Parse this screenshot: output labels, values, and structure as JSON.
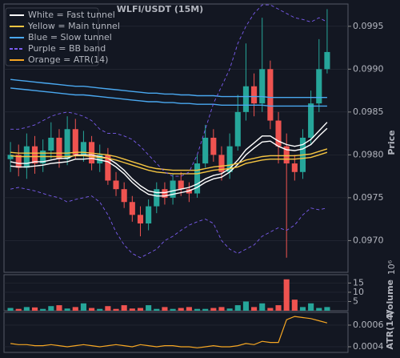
{
  "chart_data": [
    {
      "type": "candlestick",
      "title": "WLFI/USDT (15M)",
      "ylabel": "Price",
      "up_color": "#26a69a",
      "down_color": "#ef5350",
      "open": [
        0.09795,
        0.098,
        0.09785,
        0.0981,
        0.0979,
        0.09805,
        0.0982,
        0.09795,
        0.0983,
        0.098,
        0.09815,
        0.0979,
        0.098,
        0.0977,
        0.0976,
        0.09745,
        0.0973,
        0.0972,
        0.0974,
        0.0976,
        0.0975,
        0.0977,
        0.0976,
        0.09755,
        0.0979,
        0.0982,
        0.098,
        0.0978,
        0.0981,
        0.0985,
        0.0988,
        0.0986,
        0.099,
        0.0984,
        0.0981,
        0.0979,
        0.0978,
        0.0982,
        0.0986,
        0.099
      ],
      "high": [
        0.09815,
        0.09812,
        0.09825,
        0.09822,
        0.09818,
        0.09838,
        0.0983,
        0.09845,
        0.09842,
        0.09828,
        0.09822,
        0.09812,
        0.09808,
        0.0978,
        0.09768,
        0.09752,
        0.0974,
        0.09748,
        0.09768,
        0.09768,
        0.09778,
        0.0978,
        0.09768,
        0.098,
        0.09835,
        0.0983,
        0.0981,
        0.09825,
        0.0987,
        0.0993,
        0.09895,
        0.0996,
        0.0991,
        0.0985,
        0.09825,
        0.098,
        0.0983,
        0.09875,
        0.09935,
        0.0997
      ],
      "low": [
        0.0978,
        0.09775,
        0.09772,
        0.09778,
        0.0978,
        0.09795,
        0.09785,
        0.09788,
        0.09795,
        0.09792,
        0.09782,
        0.0978,
        0.09765,
        0.09752,
        0.09738,
        0.09722,
        0.09705,
        0.09712,
        0.09732,
        0.09742,
        0.09742,
        0.09752,
        0.09745,
        0.0975,
        0.09785,
        0.09792,
        0.0977,
        0.09772,
        0.09805,
        0.0984,
        0.09845,
        0.0985,
        0.0983,
        0.0979,
        0.0968,
        0.0977,
        0.09772,
        0.09812,
        0.0985,
        0.09895
      ],
      "close": [
        0.098,
        0.09785,
        0.0981,
        0.0979,
        0.09805,
        0.0982,
        0.09795,
        0.0983,
        0.098,
        0.09815,
        0.0979,
        0.098,
        0.0977,
        0.0976,
        0.09745,
        0.0973,
        0.0972,
        0.0974,
        0.0976,
        0.0975,
        0.0977,
        0.0976,
        0.09755,
        0.0979,
        0.0982,
        0.098,
        0.0978,
        0.0981,
        0.0985,
        0.0988,
        0.0986,
        0.099,
        0.0984,
        0.0981,
        0.0979,
        0.0978,
        0.0982,
        0.0986,
        0.099,
        0.0992
      ],
      "series": [
        {
          "name": "White = Fast tunnel",
          "color": "#ffffff",
          "values": [
            0.09792,
            0.0979,
            0.0979,
            0.09792,
            0.09792,
            0.09794,
            0.09796,
            0.09796,
            0.098,
            0.098,
            0.098,
            0.09798,
            0.09796,
            0.0979,
            0.09782,
            0.09772,
            0.09764,
            0.09758,
            0.09756,
            0.09756,
            0.09758,
            0.0976,
            0.09762,
            0.09766,
            0.09772,
            0.09776,
            0.09778,
            0.09784,
            0.09794,
            0.09806,
            0.09814,
            0.09822,
            0.09822,
            0.09816,
            0.09812,
            0.0981,
            0.09812,
            0.09818,
            0.09828,
            0.09838
          ],
          "lower": [
            0.09787,
            0.09786,
            0.09786,
            0.09787,
            0.09788,
            0.0979,
            0.09791,
            0.09792,
            0.09795,
            0.09795,
            0.09796,
            0.09794,
            0.09792,
            0.09786,
            0.09778,
            0.09768,
            0.0976,
            0.09754,
            0.09752,
            0.09752,
            0.09754,
            0.09756,
            0.09758,
            0.09762,
            0.09768,
            0.09772,
            0.09774,
            0.0978,
            0.09789,
            0.098,
            0.09808,
            0.09815,
            0.09816,
            0.0981,
            0.09806,
            0.09805,
            0.09807,
            0.09812,
            0.09822,
            0.09831
          ]
        },
        {
          "name": "Yellow = Main tunnel",
          "color": "#f5c542",
          "values": [
            0.09803,
            0.09802,
            0.09802,
            0.09802,
            0.09802,
            0.09802,
            0.09802,
            0.09802,
            0.09803,
            0.09803,
            0.09802,
            0.09801,
            0.098,
            0.09798,
            0.09795,
            0.09792,
            0.09789,
            0.09786,
            0.09784,
            0.09783,
            0.09782,
            0.09782,
            0.09782,
            0.09782,
            0.09784,
            0.09786,
            0.09787,
            0.09788,
            0.0979,
            0.09794,
            0.09796,
            0.09798,
            0.09799,
            0.09799,
            0.09799,
            0.09799,
            0.098,
            0.09801,
            0.09804,
            0.09807
          ],
          "lower": [
            0.09799,
            0.09798,
            0.09798,
            0.09798,
            0.09798,
            0.09798,
            0.09798,
            0.09798,
            0.09799,
            0.09799,
            0.09798,
            0.09797,
            0.09796,
            0.09794,
            0.09791,
            0.09788,
            0.09785,
            0.09782,
            0.0978,
            0.09779,
            0.09778,
            0.09778,
            0.09778,
            0.09778,
            0.0978,
            0.09782,
            0.09783,
            0.09784,
            0.09786,
            0.0979,
            0.09792,
            0.09794,
            0.09795,
            0.09795,
            0.09795,
            0.09795,
            0.09796,
            0.09797,
            0.098,
            0.09803
          ]
        },
        {
          "name": "Blue = Slow tunnel",
          "color": "#4aa8f0",
          "values": [
            0.09888,
            0.09887,
            0.09886,
            0.09885,
            0.09884,
            0.09883,
            0.09882,
            0.09881,
            0.0988,
            0.0988,
            0.09879,
            0.09878,
            0.09877,
            0.09876,
            0.09875,
            0.09874,
            0.09873,
            0.09872,
            0.09872,
            0.09871,
            0.09871,
            0.0987,
            0.0987,
            0.09869,
            0.09869,
            0.09869,
            0.09868,
            0.09868,
            0.09868,
            0.09868,
            0.09868,
            0.09868,
            0.09867,
            0.09867,
            0.09867,
            0.09867,
            0.09867,
            0.09867,
            0.09867,
            0.09867
          ],
          "lower": [
            0.09878,
            0.09877,
            0.09876,
            0.09875,
            0.09874,
            0.09873,
            0.09872,
            0.09871,
            0.0987,
            0.0987,
            0.09869,
            0.09868,
            0.09867,
            0.09866,
            0.09865,
            0.09864,
            0.09863,
            0.09862,
            0.09862,
            0.09861,
            0.09861,
            0.0986,
            0.0986,
            0.09859,
            0.09859,
            0.09859,
            0.09858,
            0.09858,
            0.09858,
            0.09858,
            0.09858,
            0.09858,
            0.09857,
            0.09857,
            0.09857,
            0.09857,
            0.09857,
            0.09857,
            0.09857,
            0.09857
          ]
        },
        {
          "name": "Purple = BB band",
          "color": "#7b5cf0",
          "dashed": true,
          "values": [
            0.0983,
            0.0983,
            0.09832,
            0.09835,
            0.0984,
            0.09845,
            0.09848,
            0.0985,
            0.09848,
            0.09845,
            0.0984,
            0.0983,
            0.09825,
            0.09825,
            0.09822,
            0.09818,
            0.0981,
            0.098,
            0.0979,
            0.0978,
            0.09775,
            0.09775,
            0.0978,
            0.098,
            0.0983,
            0.0986,
            0.0988,
            0.099,
            0.0993,
            0.0995,
            0.09965,
            0.09975,
            0.09975,
            0.0997,
            0.09965,
            0.0996,
            0.09958,
            0.09955,
            0.0996,
            0.09955
          ],
          "lower": [
            0.0976,
            0.09762,
            0.0976,
            0.09758,
            0.09755,
            0.09752,
            0.0975,
            0.09745,
            0.09748,
            0.0975,
            0.09752,
            0.09745,
            0.0973,
            0.0971,
            0.09695,
            0.09685,
            0.0968,
            0.09685,
            0.0969,
            0.097,
            0.09705,
            0.09712,
            0.09718,
            0.09722,
            0.09725,
            0.0972,
            0.097,
            0.0969,
            0.09685,
            0.0969,
            0.09695,
            0.09705,
            0.0971,
            0.09715,
            0.09712,
            0.09718,
            0.0973,
            0.09738,
            0.09736,
            0.09738
          ]
        }
      ],
      "ylim": [
        0.09663,
        0.09976
      ],
      "yticks": [
        {
          "value": 0.097,
          "label": "0.0970"
        },
        {
          "value": 0.0975,
          "label": "0.0975"
        },
        {
          "value": 0.098,
          "label": "0.0980"
        },
        {
          "value": 0.0985,
          "label": "0.0985"
        },
        {
          "value": 0.099,
          "label": "0.0990"
        },
        {
          "value": 0.0995,
          "label": "0.0995"
        }
      ],
      "grid": true
    },
    {
      "type": "bar",
      "ylabel": "Volume",
      "offset_label": "10⁶",
      "values": [
        1.5,
        1,
        2,
        1.8,
        1,
        2.5,
        3,
        1.2,
        2,
        4,
        1.5,
        1,
        2.5,
        1,
        3,
        1.2,
        1.5,
        3,
        1,
        2,
        1,
        1.5,
        2,
        1,
        1,
        1.5,
        2,
        1.2,
        3,
        5,
        2,
        4,
        1.5,
        3,
        17,
        6,
        2,
        4,
        1.5,
        2
      ],
      "ylim": [
        0,
        19.5
      ],
      "yticks": [
        5,
        10,
        15
      ],
      "grid": true
    },
    {
      "type": "line",
      "ylabel": "ATR(14)",
      "series": [
        {
          "name": "Orange = ATR(14)",
          "color": "#f5a623",
          "values": [
            0.00043,
            0.00042,
            0.00042,
            0.00041,
            0.00041,
            0.00042,
            0.00041,
            0.0004,
            0.00041,
            0.00042,
            0.00041,
            0.0004,
            0.00041,
            0.00042,
            0.00041,
            0.0004,
            0.00042,
            0.00041,
            0.0004,
            0.00041,
            0.00041,
            0.0004,
            0.0004,
            0.00039,
            0.0004,
            0.00041,
            0.0004,
            0.0004,
            0.00041,
            0.00043,
            0.00042,
            0.00045,
            0.00044,
            0.00044,
            0.00065,
            0.00068,
            0.00067,
            0.00066,
            0.00064,
            0.00062
          ]
        }
      ],
      "ylim": [
        0.000348,
        0.000718
      ],
      "yticks": [
        0.0004,
        0.0006
      ],
      "grid": true
    }
  ]
}
